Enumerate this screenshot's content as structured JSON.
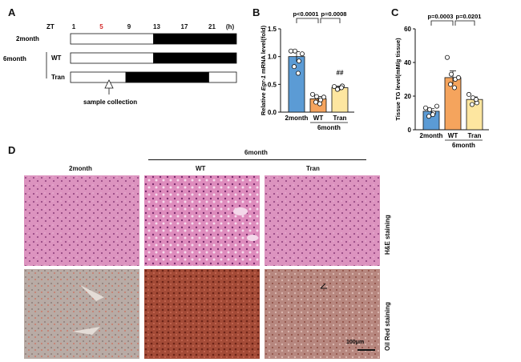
{
  "panels": {
    "a": {
      "label": "A",
      "zt_label": "ZT",
      "zt_ticks": [
        "1",
        "5",
        "9",
        "13",
        "17",
        "21",
        "(h)"
      ],
      "highlight_tick": "5",
      "highlight_color": "#d42a2a",
      "groups": [
        "2month",
        "WT",
        "Tran"
      ],
      "outer_group": "6month",
      "annotation": "sample collection",
      "schedules": [
        {
          "name": "2month",
          "light_start_zt": 0,
          "dark_start_zt": 12,
          "dark_end_zt": 24
        },
        {
          "name": "WT",
          "light_start_zt": 0,
          "dark_start_zt": 12,
          "dark_end_zt": 24
        },
        {
          "name": "Tran",
          "light_start_zt": 0,
          "dark_start_zt": 8,
          "dark_end_zt": 20
        }
      ]
    },
    "b": {
      "label": "B"
    },
    "c": {
      "label": "C"
    },
    "d": {
      "label": "D",
      "col_2month": "2month",
      "group_6month": "6month",
      "col_wt": "WT",
      "col_tran": "Tran",
      "row_he": "H&E staining",
      "row_oil": "Oil Red  staining",
      "scale_bar": "100μm",
      "colors": {
        "he": "#d98ab8",
        "oil_light": "#b7aaa4",
        "oil_dark": "#a24a36"
      }
    }
  },
  "chart_data": [
    {
      "type": "bar",
      "panel": "B",
      "ylabel_pre": "Relative ",
      "ylabel_gene": "Egr-1",
      "ylabel_post": " mRNA level(fold)",
      "categories": [
        "2month",
        "WT",
        "Tran"
      ],
      "group_label": "6month",
      "ylim": [
        0,
        1.5
      ],
      "yticks": [
        "0.0",
        "0.5",
        "1.0",
        "1.5"
      ],
      "values": [
        1.0,
        0.24,
        0.44
      ],
      "errors": [
        0.09,
        0.04,
        0.03
      ],
      "points": [
        [
          1.1,
          1.1,
          0.92,
          0.82,
          0.7,
          1.05
        ],
        [
          0.32,
          0.28,
          0.22,
          0.18,
          0.15,
          0.27
        ],
        [
          0.46,
          0.42,
          0.47,
          0.41,
          0.44
        ]
      ],
      "colors": [
        "#5b9bd5",
        "#f5a45d",
        "#fde6a0"
      ],
      "pvalues": [
        "p<0.0001",
        "p=0.0008"
      ],
      "sig_label": "##"
    },
    {
      "type": "bar",
      "panel": "C",
      "ylabel": "Tissue TG level(mM/g tissue)",
      "categories": [
        "2month",
        "WT",
        "Tran"
      ],
      "group_label": "6month",
      "ylim": [
        0,
        60
      ],
      "yticks": [
        "0",
        "20",
        "40",
        "60"
      ],
      "values": [
        11,
        31,
        18
      ],
      "errors": [
        1.5,
        4,
        1.5
      ],
      "points": [
        [
          13,
          12,
          10,
          8,
          9,
          14
        ],
        [
          43,
          33,
          30,
          27,
          25,
          31
        ],
        [
          21,
          19,
          16,
          15,
          18
        ]
      ],
      "colors": [
        "#5b9bd5",
        "#f5a45d",
        "#fde6a0"
      ],
      "pvalues": [
        "p=0.0003",
        "p=0.0201"
      ]
    }
  ]
}
